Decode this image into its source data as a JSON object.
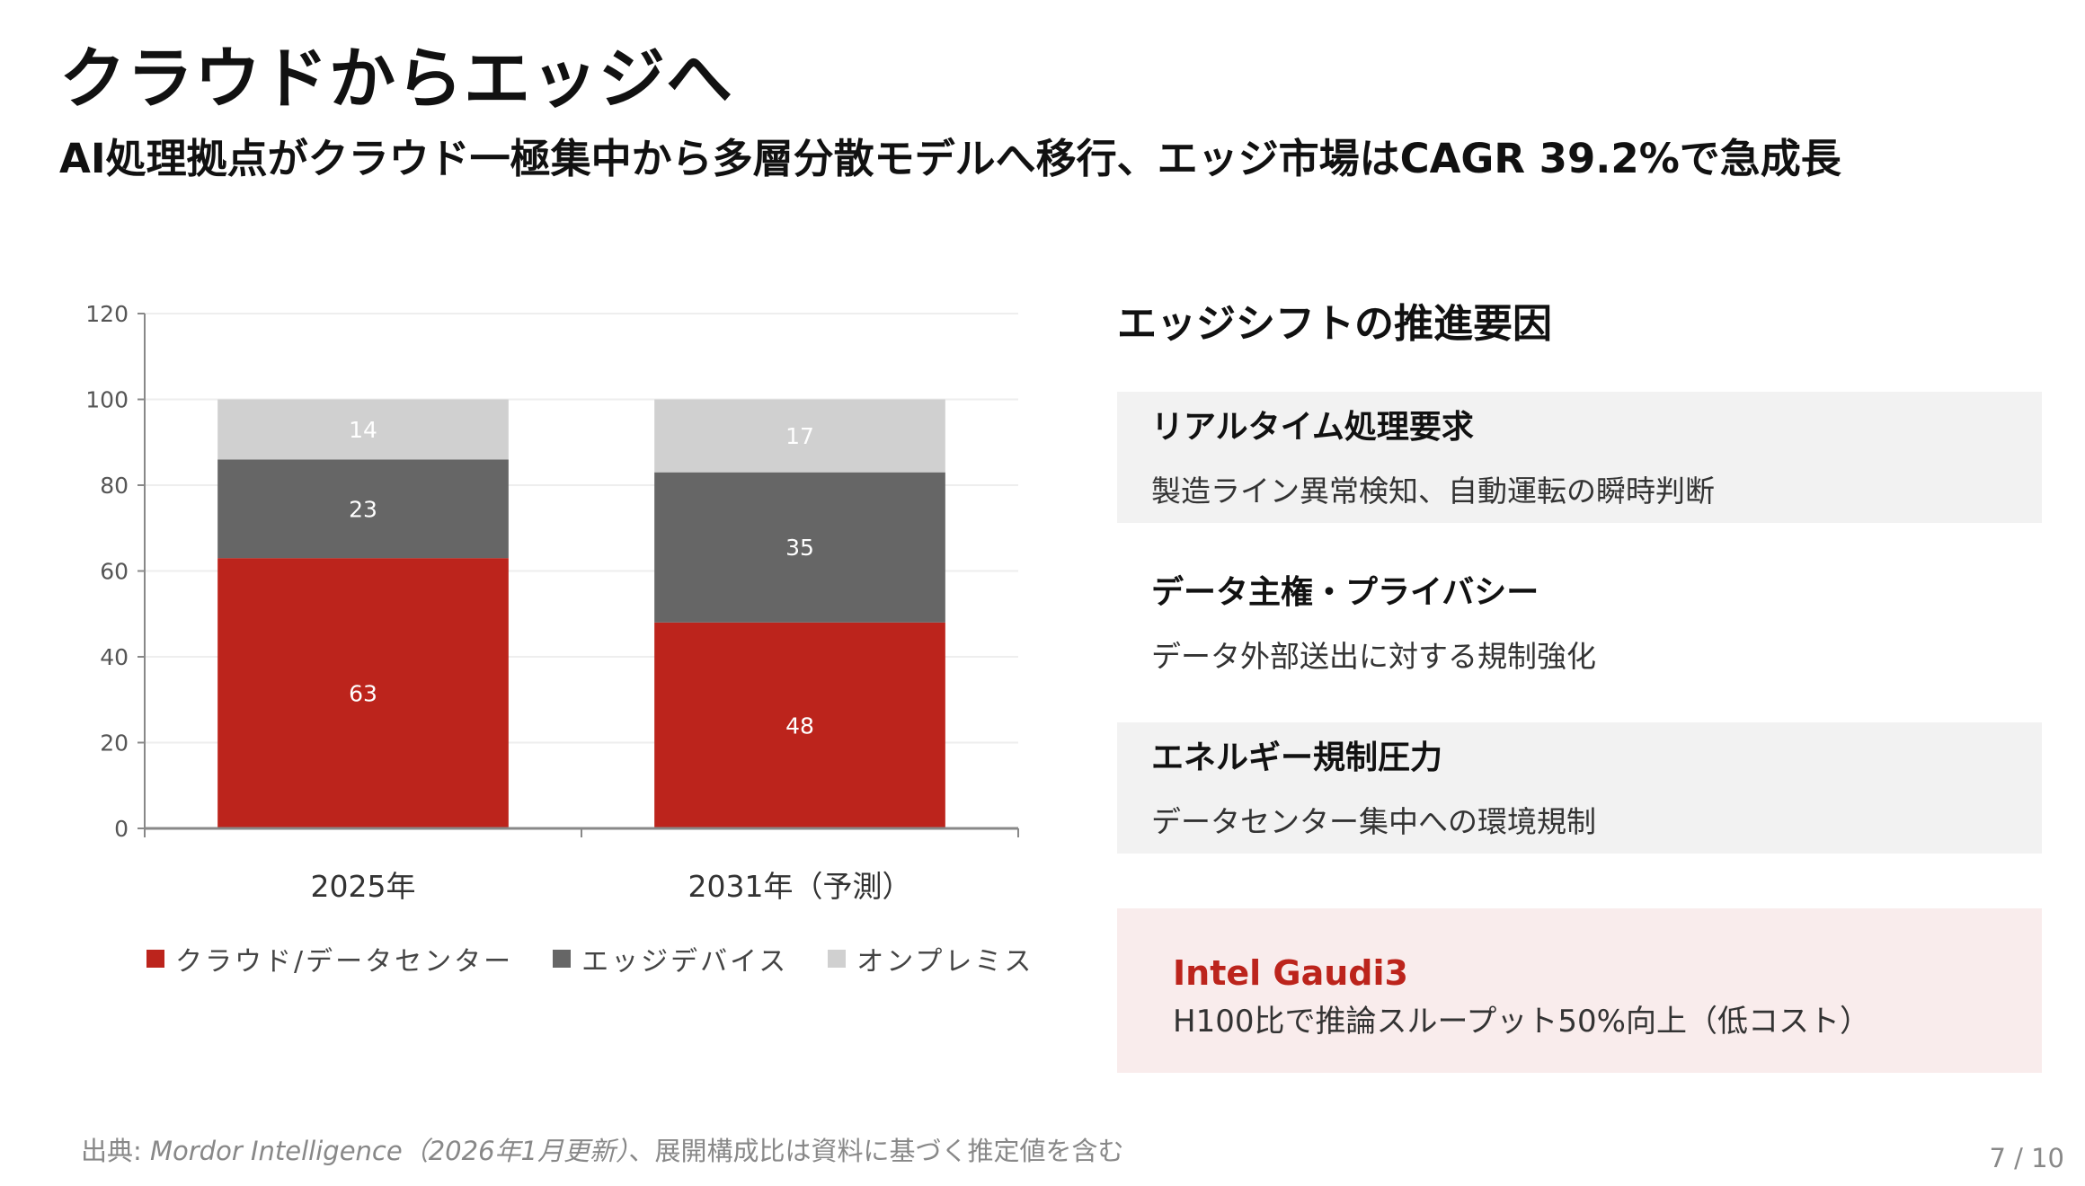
{
  "title": "クラウドからエッジへ",
  "subtitle": "AI処理拠点がクラウド一極集中から多層分散モデルへ移行、エッジ市場はCAGR 39.2%で急成長",
  "chart_data": {
    "type": "bar",
    "stacked": true,
    "categories": [
      "2025年",
      "2031年（予測）"
    ],
    "series": [
      {
        "name": "クラウド/データセンター",
        "values": [
          63,
          48
        ],
        "color": "#bc241c"
      },
      {
        "name": "エッジデバイス",
        "values": [
          23,
          35
        ],
        "color": "#666666"
      },
      {
        "name": "オンプレミス",
        "values": [
          14,
          17
        ],
        "color": "#d0d0d0"
      }
    ],
    "ylim": [
      0,
      120
    ],
    "yticks": [
      0,
      20,
      40,
      60,
      80,
      100,
      120
    ],
    "grid": true,
    "legend": "bottom"
  },
  "right": {
    "heading": "エッジシフトの推進要因",
    "cards": [
      {
        "title": "リアルタイム処理要求",
        "body": "製造ライン異常検知、自動運転の瞬時判断"
      },
      {
        "title": "データ主権・プライバシー",
        "body": "データ外部送出に対する規制強化"
      },
      {
        "title": "エネルギー規制圧力",
        "body": "データセンター集中への環境規制"
      }
    ],
    "highlight": {
      "title": "Intel Gaudi3",
      "body": "H100比で推論スループット50%向上（低コスト）"
    }
  },
  "footer": {
    "prefix": "出典: ",
    "source": "Mordor Intelligence（2026年1月更新）",
    "suffix": "、展開構成比は資料に基づく推定値を含む"
  },
  "page": "7 / 10"
}
